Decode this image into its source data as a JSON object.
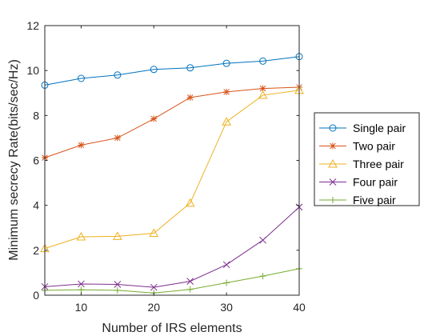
{
  "chart_data": {
    "type": "line",
    "title": "",
    "xlabel": "Number of IRS elements",
    "ylabel": "Minimum secrecy Rate(bits/sec/Hz)",
    "xlim": [
      5,
      40
    ],
    "ylim": [
      0,
      12
    ],
    "xticks": [
      10,
      20,
      30,
      40
    ],
    "yticks": [
      0,
      2,
      4,
      6,
      8,
      10,
      12
    ],
    "grid": false,
    "legend_position": "outside-right",
    "x": [
      5,
      10,
      15,
      20,
      25,
      30,
      35,
      40
    ],
    "series": [
      {
        "name": "Single pair",
        "color": "#0072BD",
        "marker": "circle",
        "values": [
          9.35,
          9.65,
          9.8,
          10.05,
          10.12,
          10.32,
          10.42,
          10.62
        ]
      },
      {
        "name": "Two pair",
        "color": "#D95319",
        "marker": "asterisk",
        "values": [
          6.12,
          6.68,
          7.0,
          7.85,
          8.8,
          9.05,
          9.2,
          9.26
        ]
      },
      {
        "name": "Three pair",
        "color": "#EDB120",
        "marker": "triangle",
        "values": [
          2.08,
          2.6,
          2.62,
          2.76,
          4.1,
          7.72,
          8.9,
          9.12
        ]
      },
      {
        "name": "Four pair",
        "color": "#7E2F8E",
        "marker": "x",
        "values": [
          0.38,
          0.5,
          0.48,
          0.35,
          0.62,
          1.36,
          2.45,
          3.92
        ]
      },
      {
        "name": "Five pair",
        "color": "#77AC30",
        "marker": "plus",
        "values": [
          0.22,
          0.24,
          0.22,
          0.1,
          0.26,
          0.55,
          0.85,
          1.18
        ]
      }
    ]
  }
}
